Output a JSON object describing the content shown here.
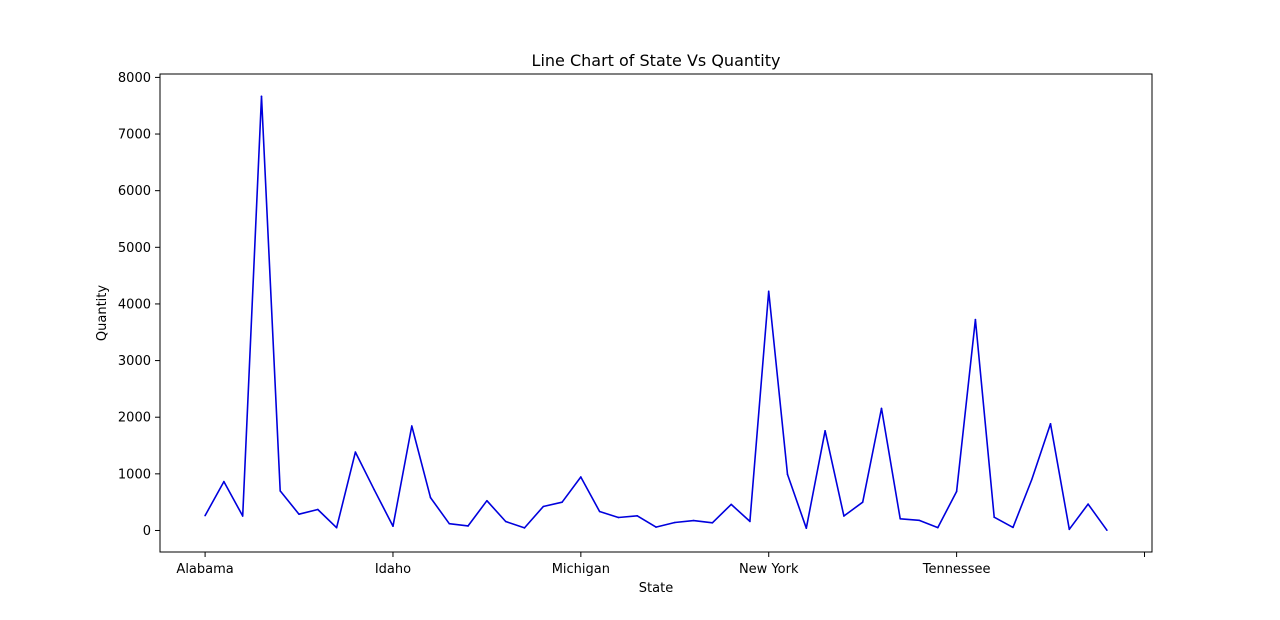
{
  "chart_data": {
    "type": "line",
    "title": "Line Chart of State Vs Quantity",
    "xlabel": "State",
    "ylabel": "Quantity",
    "ylim": [
      -380,
      8060
    ],
    "yticks": [
      0,
      1000,
      2000,
      3000,
      4000,
      5000,
      6000,
      7000,
      8000
    ],
    "xtick_labels": [
      "Alabama",
      "Idaho",
      "Michigan",
      "New York",
      "Tennessee",
      ""
    ],
    "xtick_positions": [
      0,
      10,
      20,
      30,
      40,
      50
    ],
    "xlim": [
      -2.4,
      50.4
    ],
    "grid": false,
    "legend": "none",
    "series": [
      {
        "color": "#0000dd",
        "x": [
          0,
          1,
          2,
          3,
          4,
          5,
          6,
          7,
          8,
          9,
          10,
          11,
          12,
          13,
          14,
          15,
          16,
          17,
          18,
          19,
          20,
          21,
          22,
          23,
          24,
          25,
          26,
          27,
          28,
          29,
          30,
          31,
          32,
          33,
          34,
          35,
          36,
          37,
          38,
          39,
          40,
          41,
          42,
          43,
          44,
          45,
          46,
          47,
          48
        ],
        "values": [
          263,
          863,
          255,
          7667,
          698,
          287,
          371,
          49,
          1384,
          720,
          76,
          1845,
          581,
          120,
          80,
          525,
          159,
          45,
          423,
          500,
          945,
          335,
          230,
          260,
          60,
          140,
          175,
          135,
          460,
          160,
          4224,
          990,
          40,
          1760,
          255,
          500,
          2156,
          206,
          180,
          50,
          688,
          3723,
          234,
          55,
          900,
          1883,
          20,
          466,
          5
        ]
      }
    ]
  }
}
